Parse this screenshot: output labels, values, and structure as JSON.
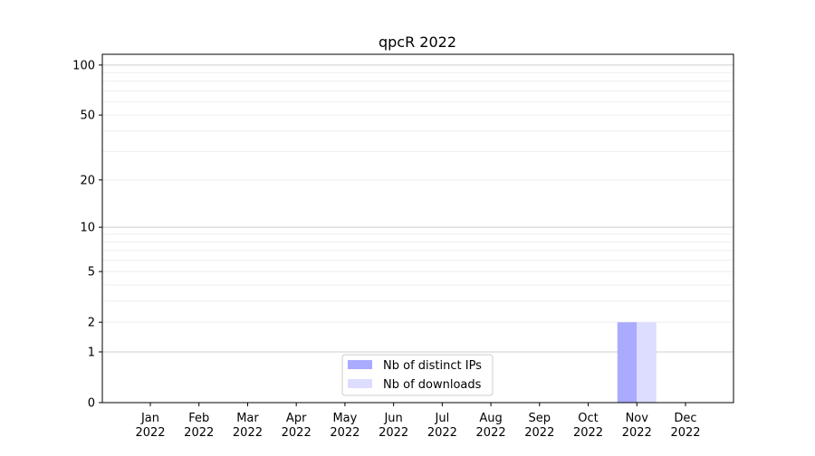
{
  "chart_data": {
    "type": "bar",
    "title": "qpcR 2022",
    "xlabel": "",
    "ylabel": "",
    "yscale": "symlog (log of 1+y)",
    "ylim": [
      0,
      116
    ],
    "yticks": [
      0,
      1,
      2,
      5,
      10,
      20,
      50,
      100
    ],
    "grid": true,
    "legend_placement": "lower-center",
    "categories": [
      "Jan\n2022",
      "Feb\n2022",
      "Mar\n2022",
      "Apr\n2022",
      "May\n2022",
      "Jun\n2022",
      "Jul\n2022",
      "Aug\n2022",
      "Sep\n2022",
      "Oct\n2022",
      "Nov\n2022",
      "Dec\n2022"
    ],
    "series": [
      {
        "name": "Nb of distinct IPs",
        "color": "#aaaaff",
        "values": [
          0,
          0,
          0,
          0,
          0,
          0,
          0,
          0,
          0,
          0,
          2,
          0
        ]
      },
      {
        "name": "Nb of downloads",
        "color": "#ddddff",
        "values": [
          0,
          0,
          0,
          0,
          0,
          0,
          0,
          0,
          0,
          0,
          2,
          0
        ]
      }
    ]
  }
}
